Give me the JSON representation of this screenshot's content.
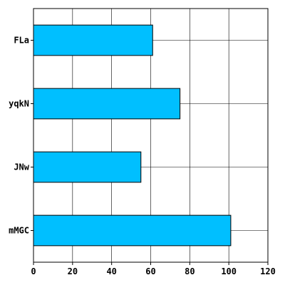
{
  "chart_data": {
    "type": "bar",
    "orientation": "horizontal",
    "categories": [
      "FLa",
      "yqkN",
      "JNw",
      "mMGC"
    ],
    "values": [
      61,
      75,
      55,
      101
    ],
    "title": "",
    "xlabel": "",
    "ylabel": "",
    "xlim": [
      0,
      120
    ],
    "xticks": [
      "0",
      "20",
      "40",
      "60",
      "80",
      "100",
      "120"
    ],
    "grid": true,
    "bar_color": "#00bfff",
    "edge_color": "#000000"
  }
}
